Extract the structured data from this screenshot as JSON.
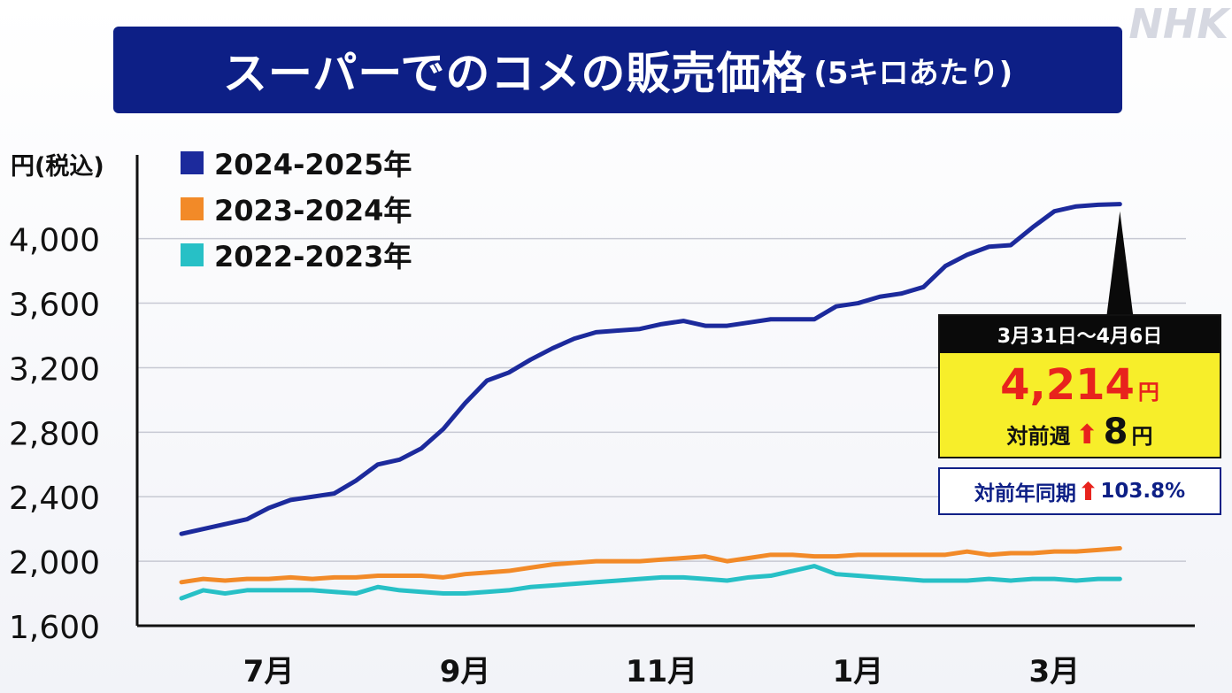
{
  "title": {
    "main": "スーパーでのコメの販売価格",
    "sub": "(5キロあたり)"
  },
  "watermark": "NHK",
  "chart_data": {
    "type": "line",
    "ylabel": "円(税込)",
    "ylim": [
      1600,
      4300
    ],
    "yticks": [
      1600,
      2000,
      2400,
      2800,
      3200,
      3600,
      4000
    ],
    "ytick_labels": [
      "1,600",
      "2,000",
      "2,400",
      "2,800",
      "3,200",
      "3,600",
      "4,000"
    ],
    "xlim": [
      0,
      44
    ],
    "xticks": [
      4,
      13,
      22,
      31,
      40
    ],
    "xtick_labels": [
      "7月",
      "9月",
      "11月",
      "1月",
      "3月"
    ],
    "grid": true,
    "legend_position": "top-left",
    "series": [
      {
        "name": "2024-2025年",
        "color": "#1c2a9c",
        "width": 5,
        "values": [
          2170,
          2200,
          2230,
          2260,
          2330,
          2380,
          2400,
          2420,
          2500,
          2600,
          2630,
          2700,
          2820,
          2980,
          3120,
          3170,
          3250,
          3320,
          3380,
          3420,
          3430,
          3440,
          3470,
          3490,
          3460,
          3460,
          3480,
          3500,
          3500,
          3500,
          3580,
          3600,
          3640,
          3660,
          3700,
          3830,
          3900,
          3950,
          3960,
          4070,
          4170,
          4200,
          4210,
          4214
        ]
      },
      {
        "name": "2023-2024年",
        "color": "#f28a28",
        "width": 5,
        "values": [
          1870,
          1890,
          1880,
          1890,
          1890,
          1900,
          1890,
          1900,
          1900,
          1910,
          1910,
          1910,
          1900,
          1920,
          1930,
          1940,
          1960,
          1980,
          1990,
          2000,
          2000,
          2000,
          2010,
          2020,
          2030,
          2000,
          2020,
          2040,
          2040,
          2030,
          2030,
          2040,
          2040,
          2040,
          2040,
          2040,
          2060,
          2040,
          2050,
          2050,
          2060,
          2060,
          2070,
          2080
        ]
      },
      {
        "name": "2022-2023年",
        "color": "#27c0c6",
        "width": 5,
        "values": [
          1770,
          1820,
          1800,
          1820,
          1820,
          1820,
          1820,
          1810,
          1800,
          1840,
          1820,
          1810,
          1800,
          1800,
          1810,
          1820,
          1840,
          1850,
          1860,
          1870,
          1880,
          1890,
          1900,
          1900,
          1890,
          1880,
          1900,
          1910,
          1940,
          1970,
          1920,
          1910,
          1900,
          1890,
          1880,
          1880,
          1880,
          1890,
          1880,
          1890,
          1890,
          1880,
          1890,
          1890
        ]
      }
    ]
  },
  "callout": {
    "date_range": "3月31日～4月6日",
    "price": "4,214",
    "yen": "円",
    "week_label": "対前週",
    "arrow": "⬆",
    "week_change": "8",
    "week_yen": "円",
    "yoy_label": "対前年同期",
    "yoy_value": "103.8%"
  }
}
